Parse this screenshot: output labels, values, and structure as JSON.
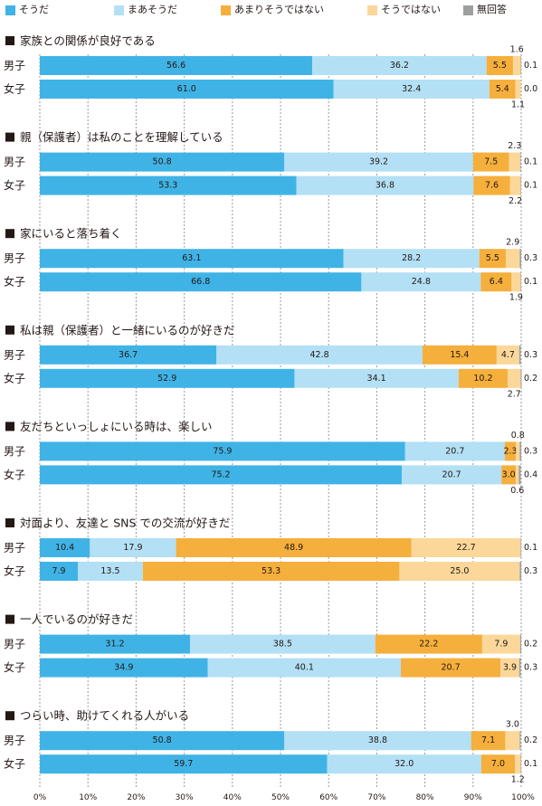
{
  "legend": [
    {
      "label": "そうだ",
      "color": "#40b3e6"
    },
    {
      "label": "まあそうだ",
      "color": "#b3e0f5"
    },
    {
      "label": "あまりそうではない",
      "color": "#f5af3c"
    },
    {
      "label": "そうではない",
      "color": "#fbd79a"
    },
    {
      "label": "無回答",
      "color": "#9d9e9e"
    }
  ],
  "chart_data": {
    "type": "bar",
    "orientation": "horizontal",
    "stacked": true,
    "xlim": [
      0,
      100
    ],
    "xticks": [
      "0%",
      "10%",
      "20%",
      "30%",
      "40%",
      "50%",
      "60%",
      "70%",
      "80%",
      "90%",
      "100%"
    ],
    "grid": true,
    "legend_position": "top",
    "series_names": [
      "そうだ",
      "まあそうだ",
      "あまりそうではない",
      "そうではない",
      "無回答"
    ],
    "questions": [
      {
        "title": "家族との関係が良好である",
        "rows": [
          {
            "group": "男子",
            "values": [
              56.6,
              36.2,
              5.5,
              1.6,
              0.1
            ],
            "labels": [
              "56.6",
              "36.2",
              "5.5",
              "1.6",
              "0.1"
            ]
          },
          {
            "group": "女子",
            "values": [
              61.0,
              32.4,
              5.4,
              1.1,
              0.0
            ],
            "labels": [
              "61.0",
              "32.4",
              "5.4",
              "1.1",
              "0.0"
            ]
          }
        ]
      },
      {
        "title": "親（保護者）は私のことを理解している",
        "rows": [
          {
            "group": "男子",
            "values": [
              50.8,
              39.2,
              7.5,
              2.3,
              0.1
            ],
            "labels": [
              "50.8",
              "39.2",
              "7.5",
              "2.3",
              "0.1"
            ]
          },
          {
            "group": "女子",
            "values": [
              53.3,
              36.8,
              7.6,
              2.2,
              0.1
            ],
            "labels": [
              "53.3",
              "36.8",
              "7.6",
              "2.2",
              "0.1"
            ]
          }
        ]
      },
      {
        "title": "家にいると落ち着く",
        "rows": [
          {
            "group": "男子",
            "values": [
              63.1,
              28.2,
              5.5,
              2.9,
              0.3
            ],
            "labels": [
              "63.1",
              "28.2",
              "5.5",
              "2.9",
              "0.3"
            ]
          },
          {
            "group": "女子",
            "values": [
              66.8,
              24.8,
              6.4,
              1.9,
              0.1
            ],
            "labels": [
              "66.8",
              "24.8",
              "6.4",
              "1.9",
              "0.1"
            ]
          }
        ]
      },
      {
        "title": "私は親（保護者）と一緒にいるのが好きだ",
        "rows": [
          {
            "group": "男子",
            "values": [
              36.7,
              42.8,
              15.4,
              4.7,
              0.3
            ],
            "labels": [
              "36.7",
              "42.8",
              "15.4",
              "4.7",
              "0.3"
            ]
          },
          {
            "group": "女子",
            "values": [
              52.9,
              34.1,
              10.2,
              2.7,
              0.2
            ],
            "labels": [
              "52.9",
              "34.1",
              "10.2",
              "2.7",
              "0.2"
            ]
          }
        ]
      },
      {
        "title": "友だちといっしょにいる時は、楽しい",
        "rows": [
          {
            "group": "男子",
            "values": [
              75.9,
              20.7,
              2.3,
              0.8,
              0.3
            ],
            "labels": [
              "75.9",
              "20.7",
              "2.3",
              "0.8",
              "0.3"
            ]
          },
          {
            "group": "女子",
            "values": [
              75.2,
              20.7,
              3.0,
              0.6,
              0.4
            ],
            "labels": [
              "75.2",
              "20.7",
              "3.0",
              "0.6",
              "0.4"
            ]
          }
        ]
      },
      {
        "title": "対面より、友達と SNS での交流が好きだ",
        "rows": [
          {
            "group": "男子",
            "values": [
              10.4,
              17.9,
              48.9,
              22.7,
              0.1
            ],
            "labels": [
              "10.4",
              "17.9",
              "48.9",
              "22.7",
              "0.1"
            ]
          },
          {
            "group": "女子",
            "values": [
              7.9,
              13.5,
              53.3,
              25.0,
              0.3
            ],
            "labels": [
              "7.9",
              "13.5",
              "53.3",
              "25.0",
              "0.3"
            ]
          }
        ]
      },
      {
        "title": "一人でいるのが好きだ",
        "rows": [
          {
            "group": "男子",
            "values": [
              31.2,
              38.5,
              22.2,
              7.9,
              0.2
            ],
            "labels": [
              "31.2",
              "38.5",
              "22.2",
              "7.9",
              "0.2"
            ]
          },
          {
            "group": "女子",
            "values": [
              34.9,
              40.1,
              20.7,
              3.9,
              0.3
            ],
            "labels": [
              "34.9",
              "40.1",
              "20.7",
              "3.9",
              "0.3"
            ]
          }
        ]
      },
      {
        "title": "つらい時、助けてくれる人がいる",
        "rows": [
          {
            "group": "男子",
            "values": [
              50.8,
              38.8,
              7.1,
              3.0,
              0.2
            ],
            "labels": [
              "50.8",
              "38.8",
              "7.1",
              "3.0",
              "0.2"
            ]
          },
          {
            "group": "女子",
            "values": [
              59.7,
              32.0,
              7.0,
              1.2,
              0.1
            ],
            "labels": [
              "59.7",
              "32.0",
              "7.0",
              "1.2",
              "0.1"
            ]
          }
        ]
      }
    ]
  }
}
